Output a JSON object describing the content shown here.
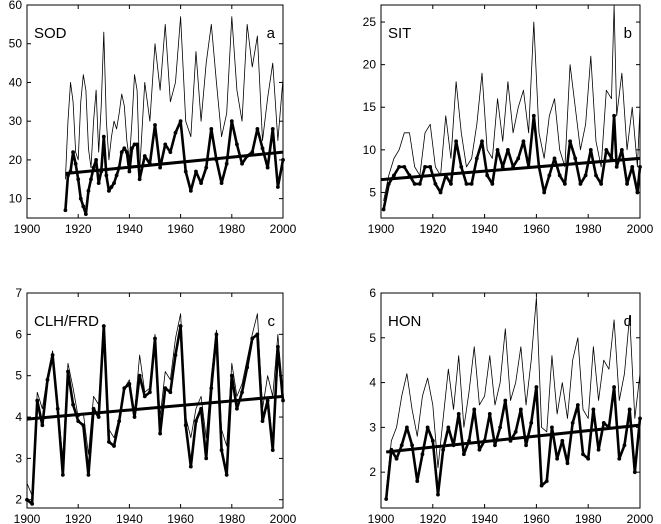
{
  "chart_data": [
    {
      "type": "line",
      "title": "SOD",
      "panel_letter": "a",
      "xlim": [
        1900,
        2000
      ],
      "ylim": [
        5,
        60
      ],
      "xticks": [
        1900,
        1920,
        1940,
        1960,
        1980,
        2000
      ],
      "yticks": [
        10,
        20,
        30,
        40,
        50,
        60
      ],
      "trend": {
        "x": [
          1915,
          2000
        ],
        "y": [
          16.5,
          22.0
        ]
      },
      "series": [
        {
          "name": "thin",
          "x": [
            1915,
            1916,
            1917,
            1918,
            1919,
            1920,
            1921,
            1922,
            1923,
            1924,
            1925,
            1926,
            1927,
            1928,
            1929,
            1930,
            1931,
            1932,
            1933,
            1934,
            1935,
            1936,
            1937,
            1938,
            1939,
            1940,
            1941,
            1942,
            1943,
            1944,
            1946,
            1948,
            1950,
            1952,
            1954,
            1956,
            1958,
            1960,
            1962,
            1964,
            1966,
            1968,
            1970,
            1972,
            1974,
            1976,
            1978,
            1980,
            1982,
            1984,
            1986,
            1988,
            1990,
            1992,
            1994,
            1996,
            1998,
            2000
          ],
          "y": [
            15,
            30,
            40,
            35,
            22,
            20,
            35,
            42,
            38,
            23,
            18,
            30,
            38,
            22,
            34,
            53,
            30,
            20,
            26,
            30,
            28,
            32,
            37,
            34,
            25,
            20,
            30,
            42,
            38,
            17,
            40,
            30,
            50,
            38,
            55,
            35,
            40,
            57,
            30,
            26,
            48,
            30,
            45,
            55,
            40,
            26,
            32,
            57,
            38,
            30,
            55,
            44,
            52,
            25,
            36,
            45,
            25,
            41
          ]
        },
        {
          "name": "thick",
          "x": [
            1915,
            1916,
            1917,
            1918,
            1919,
            1920,
            1921,
            1922,
            1923,
            1924,
            1925,
            1926,
            1927,
            1928,
            1929,
            1930,
            1931,
            1932,
            1933,
            1934,
            1935,
            1936,
            1937,
            1938,
            1939,
            1940,
            1941,
            1942,
            1943,
            1944,
            1946,
            1948,
            1950,
            1952,
            1954,
            1956,
            1958,
            1960,
            1962,
            1964,
            1966,
            1968,
            1970,
            1972,
            1974,
            1976,
            1978,
            1980,
            1982,
            1984,
            1986,
            1988,
            1990,
            1992,
            1994,
            1996,
            1998,
            2000
          ],
          "y": [
            7,
            16,
            17,
            22,
            19,
            15,
            10,
            8,
            6,
            12,
            15,
            18,
            20,
            14,
            17,
            26,
            16,
            12,
            13,
            14,
            16,
            18,
            22,
            23,
            22,
            17,
            23,
            24,
            24,
            15,
            21,
            19,
            29,
            18,
            24,
            22,
            27,
            30,
            17,
            12,
            17,
            14,
            18,
            28,
            20,
            14,
            19,
            30,
            24,
            19,
            21,
            22,
            28,
            23,
            18,
            28,
            13,
            20
          ]
        }
      ]
    },
    {
      "type": "line",
      "title": "SIT",
      "panel_letter": "b",
      "xlim": [
        1900,
        2000
      ],
      "ylim": [
        2,
        27
      ],
      "xticks": [
        1900,
        1920,
        1940,
        1960,
        1980,
        2000
      ],
      "yticks": [
        5,
        10,
        15,
        20,
        25
      ],
      "trend": {
        "x": [
          1900,
          2000
        ],
        "y": [
          6.5,
          9.0
        ]
      },
      "series": [
        {
          "name": "thin",
          "x": [
            1901,
            1903,
            1905,
            1907,
            1909,
            1911,
            1913,
            1915,
            1917,
            1919,
            1921,
            1923,
            1925,
            1927,
            1929,
            1931,
            1933,
            1935,
            1937,
            1939,
            1941,
            1943,
            1945,
            1947,
            1949,
            1951,
            1953,
            1955,
            1957,
            1959,
            1961,
            1963,
            1965,
            1967,
            1969,
            1971,
            1973,
            1975,
            1977,
            1979,
            1981,
            1983,
            1985,
            1987,
            1989,
            1990,
            1991,
            1993,
            1995,
            1997,
            1999,
            2000
          ],
          "y": [
            4,
            7,
            9,
            10,
            12,
            12,
            8,
            7,
            12,
            13,
            8,
            7,
            14,
            9,
            18,
            12,
            8,
            9,
            13,
            19,
            10,
            9,
            16,
            11,
            18,
            12,
            15,
            17,
            12,
            25,
            12,
            9,
            14,
            16,
            10,
            8,
            20,
            15,
            10,
            13,
            21,
            11,
            8,
            17,
            16,
            27,
            14,
            19,
            10,
            15,
            8,
            15
          ]
        },
        {
          "name": "thick",
          "x": [
            1901,
            1903,
            1905,
            1907,
            1909,
            1911,
            1913,
            1915,
            1917,
            1919,
            1921,
            1923,
            1925,
            1927,
            1929,
            1931,
            1933,
            1935,
            1937,
            1939,
            1941,
            1943,
            1945,
            1947,
            1949,
            1951,
            1953,
            1955,
            1957,
            1959,
            1961,
            1963,
            1965,
            1967,
            1969,
            1971,
            1973,
            1975,
            1977,
            1979,
            1981,
            1983,
            1985,
            1987,
            1989,
            1990,
            1991,
            1993,
            1995,
            1997,
            1999,
            2000
          ],
          "y": [
            3,
            6,
            7,
            8,
            8,
            7,
            6,
            6,
            8,
            8,
            6,
            5,
            7,
            6,
            11,
            8,
            6,
            6,
            9,
            11,
            7,
            6,
            10,
            8,
            10,
            8,
            9,
            11,
            8,
            14,
            8,
            5,
            7,
            9,
            7,
            6,
            11,
            9,
            6,
            7,
            10,
            7,
            6,
            10,
            9,
            14,
            8,
            10,
            6,
            8,
            5,
            8
          ]
        }
      ]
    },
    {
      "type": "line",
      "title": "CLH/FRD",
      "panel_letter": "c",
      "xlim": [
        1900,
        2000
      ],
      "ylim": [
        1.8,
        7
      ],
      "xticks": [
        1900,
        1920,
        1940,
        1960,
        1980,
        2000
      ],
      "yticks": [
        2,
        3,
        4,
        5,
        6,
        7
      ],
      "trend": {
        "x": [
          1900,
          2000
        ],
        "y": [
          3.95,
          4.5
        ]
      },
      "series": [
        {
          "name": "thin",
          "x": [
            1900,
            1902,
            1904,
            1906,
            1908,
            1910,
            1912,
            1914,
            1916,
            1918,
            1920,
            1922,
            1924,
            1926,
            1928,
            1930,
            1932,
            1934,
            1936,
            1938,
            1940,
            1942,
            1944,
            1946,
            1948,
            1950,
            1952,
            1954,
            1956,
            1958,
            1960,
            1962,
            1964,
            1966,
            1968,
            1970,
            1972,
            1974,
            1976,
            1978,
            1980,
            1982,
            1984,
            1986,
            1988,
            1990,
            1992,
            1994,
            1996,
            1998,
            2000
          ],
          "y": [
            2.4,
            2.1,
            4.6,
            4.2,
            5.0,
            5.6,
            4.3,
            3.0,
            5.3,
            4.7,
            4.0,
            4.1,
            3.1,
            4.5,
            4.3,
            6.2,
            3.7,
            3.5,
            4.0,
            4.7,
            4.9,
            4.1,
            5.5,
            4.6,
            4.7,
            6.0,
            4.0,
            5.1,
            4.9,
            5.9,
            6.5,
            4.0,
            3.5,
            4.2,
            4.5,
            3.5,
            5.0,
            6.1,
            3.7,
            3.3,
            5.3,
            4.5,
            4.8,
            5.4,
            6.0,
            6.5,
            4.2,
            5.0,
            4.5,
            6.0,
            4.3
          ]
        },
        {
          "name": "thick",
          "x": [
            1900,
            1902,
            1904,
            1906,
            1908,
            1910,
            1912,
            1914,
            1916,
            1918,
            1920,
            1922,
            1924,
            1926,
            1928,
            1930,
            1932,
            1934,
            1936,
            1938,
            1940,
            1942,
            1944,
            1946,
            1948,
            1950,
            1952,
            1954,
            1956,
            1958,
            1960,
            1962,
            1964,
            1966,
            1968,
            1970,
            1972,
            1974,
            1976,
            1978,
            1980,
            1982,
            1984,
            1986,
            1988,
            1990,
            1992,
            1994,
            1996,
            1998,
            2000
          ],
          "y": [
            2.0,
            1.9,
            4.4,
            3.8,
            4.9,
            5.5,
            4.2,
            2.6,
            5.1,
            4.3,
            3.9,
            3.8,
            2.6,
            4.2,
            4.0,
            6.2,
            3.4,
            3.3,
            3.9,
            4.7,
            4.8,
            4.0,
            5.0,
            4.5,
            4.6,
            5.9,
            3.6,
            4.7,
            4.6,
            5.5,
            6.2,
            3.8,
            2.8,
            3.9,
            4.2,
            3.0,
            4.7,
            6.0,
            3.2,
            2.6,
            5.0,
            4.2,
            4.6,
            5.2,
            5.9,
            6.0,
            3.9,
            4.4,
            3.2,
            5.7,
            4.4
          ]
        }
      ]
    },
    {
      "type": "line",
      "title": "HON",
      "panel_letter": "d",
      "xlim": [
        1900,
        2000
      ],
      "ylim": [
        1.2,
        6
      ],
      "xticks": [
        1900,
        1920,
        1940,
        1960,
        1980,
        2000
      ],
      "yticks": [
        2,
        3,
        4,
        5,
        6
      ],
      "trend": {
        "x": [
          1902,
          2000
        ],
        "y": [
          2.45,
          3.05
        ]
      },
      "series": [
        {
          "name": "thin",
          "x": [
            1902,
            1904,
            1906,
            1908,
            1910,
            1912,
            1914,
            1916,
            1918,
            1920,
            1922,
            1924,
            1926,
            1928,
            1930,
            1932,
            1934,
            1936,
            1938,
            1940,
            1942,
            1944,
            1946,
            1948,
            1950,
            1952,
            1954,
            1956,
            1958,
            1960,
            1962,
            1964,
            1966,
            1968,
            1970,
            1972,
            1974,
            1976,
            1978,
            1980,
            1982,
            1984,
            1986,
            1988,
            1990,
            1992,
            1994,
            1996,
            1998,
            2000
          ],
          "y": [
            1.6,
            2.7,
            3.0,
            3.7,
            4.2,
            3.4,
            2.8,
            3.7,
            4.1,
            3.5,
            2.1,
            3.2,
            4.3,
            3.4,
            4.6,
            3.0,
            3.8,
            4.8,
            3.5,
            3.7,
            4.6,
            3.5,
            4.0,
            5.2,
            3.6,
            4.0,
            4.8,
            3.5,
            4.5,
            5.9,
            3.0,
            2.9,
            4.6,
            3.3,
            4.0,
            3.2,
            4.5,
            5.0,
            3.4,
            3.2,
            4.8,
            3.6,
            4.5,
            4.3,
            5.4,
            3.6,
            4.2,
            5.5,
            3.2,
            4.2
          ]
        },
        {
          "name": "thick",
          "x": [
            1902,
            1904,
            1906,
            1908,
            1910,
            1912,
            1914,
            1916,
            1918,
            1920,
            1922,
            1924,
            1926,
            1928,
            1930,
            1932,
            1934,
            1936,
            1938,
            1940,
            1942,
            1944,
            1946,
            1948,
            1950,
            1952,
            1954,
            1956,
            1958,
            1960,
            1962,
            1964,
            1966,
            1968,
            1970,
            1972,
            1974,
            1976,
            1978,
            1980,
            1982,
            1984,
            1986,
            1988,
            1990,
            1992,
            1994,
            1996,
            1998,
            2000
          ],
          "y": [
            1.4,
            2.5,
            2.3,
            2.6,
            3.0,
            2.6,
            1.8,
            2.4,
            3.0,
            2.7,
            1.5,
            2.5,
            3.0,
            2.6,
            3.3,
            2.4,
            2.7,
            3.4,
            2.5,
            2.7,
            3.3,
            2.6,
            3.0,
            3.6,
            2.7,
            2.9,
            3.4,
            2.6,
            3.1,
            3.9,
            1.7,
            1.8,
            3.0,
            2.3,
            2.7,
            2.2,
            3.1,
            3.5,
            2.4,
            2.3,
            3.4,
            2.5,
            3.1,
            3.0,
            3.9,
            2.3,
            2.6,
            3.4,
            2.0,
            3.2
          ]
        }
      ]
    }
  ]
}
